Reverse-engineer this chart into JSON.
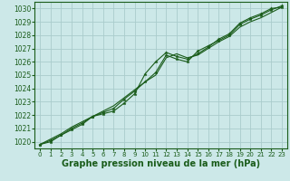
{
  "bg_color": "#cce8e8",
  "grid_color": "#aacccc",
  "line_color": "#1a5c1a",
  "marker_color": "#1a5c1a",
  "xlabel": "Graphe pression niveau de la mer (hPa)",
  "xlabel_fontsize": 7,
  "ylim": [
    1019.5,
    1030.5
  ],
  "xlim": [
    -0.5,
    23.5
  ],
  "xticks": [
    0,
    1,
    2,
    3,
    4,
    5,
    6,
    7,
    8,
    9,
    10,
    11,
    12,
    13,
    14,
    15,
    16,
    17,
    18,
    19,
    20,
    21,
    22,
    23
  ],
  "yticks": [
    1020,
    1021,
    1022,
    1023,
    1024,
    1025,
    1026,
    1027,
    1028,
    1029,
    1030
  ],
  "line1": [
    1019.8,
    1020.0,
    1020.5,
    1020.9,
    1021.3,
    1021.9,
    1022.1,
    1022.3,
    1022.9,
    1023.6,
    1025.1,
    1026.0,
    1026.7,
    1026.4,
    1026.2,
    1026.6,
    1027.1,
    1027.7,
    1028.1,
    1028.9,
    1029.3,
    1029.6,
    1030.0,
    1030.1
  ],
  "line2": [
    1019.8,
    1020.1,
    1020.5,
    1021.0,
    1021.4,
    1021.9,
    1022.2,
    1022.5,
    1023.2,
    1023.8,
    1024.5,
    1025.2,
    1026.5,
    1026.2,
    1026.0,
    1026.8,
    1027.2,
    1027.6,
    1028.0,
    1028.8,
    1029.2,
    1029.5,
    1029.9,
    1030.2
  ],
  "line3": [
    1019.8,
    1020.2,
    1020.6,
    1021.1,
    1021.5,
    1021.9,
    1022.3,
    1022.7,
    1023.3,
    1023.9,
    1024.5,
    1025.0,
    1026.3,
    1026.6,
    1026.3,
    1026.5,
    1027.0,
    1027.5,
    1027.9,
    1028.6,
    1029.0,
    1029.3,
    1029.7,
    1030.1
  ]
}
